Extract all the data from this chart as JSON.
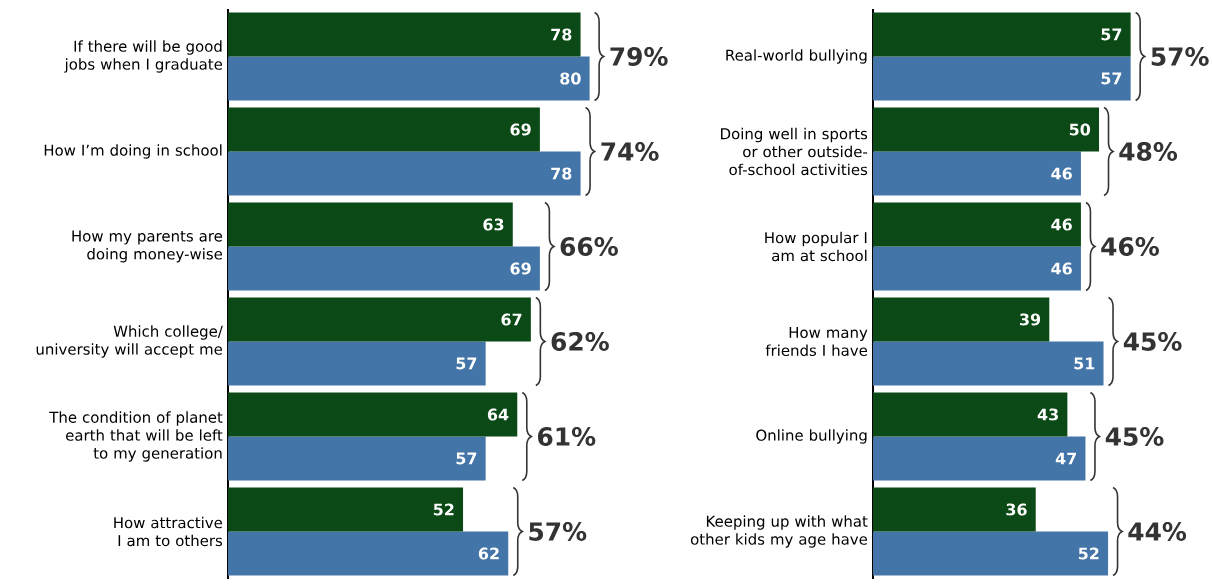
{
  "chart_data": [
    {
      "type": "bar",
      "orientation": "horizontal",
      "data_labels": true,
      "tick_labels": "y",
      "categories": [
        "If there will be good jobs when I graduate",
        "How I’m doing in school",
        "How my parents are doing money-wise",
        "Which college/ university will accept me",
        "The condition of planet earth that will be left to my generation",
        "How attractive I am to others"
      ],
      "series": [
        {
          "color": "#0b4a17",
          "values": [
            78,
            69,
            63,
            67,
            64,
            52
          ]
        },
        {
          "color": "#4475a8",
          "values": [
            80,
            78,
            69,
            57,
            57,
            62
          ]
        }
      ],
      "annotations": [
        "79%",
        "74%",
        "66%",
        "62%",
        "61%",
        "57%"
      ]
    },
    {
      "type": "bar",
      "orientation": "horizontal",
      "data_labels": true,
      "tick_labels": "y",
      "categories": [
        "Real-world bullying",
        "Doing well in sports or other outside-of-school activities",
        "How popular I am at school",
        "How many friends I have",
        "Online bullying",
        "Keeping up with what other kids my age have"
      ],
      "series": [
        {
          "color": "#0b4a17",
          "values": [
            57,
            50,
            46,
            39,
            43,
            36
          ]
        },
        {
          "color": "#4475a8",
          "values": [
            57,
            46,
            46,
            51,
            47,
            52
          ]
        }
      ],
      "annotations": [
        "57%",
        "48%",
        "46%",
        "45%",
        "45%",
        "44%"
      ]
    }
  ]
}
